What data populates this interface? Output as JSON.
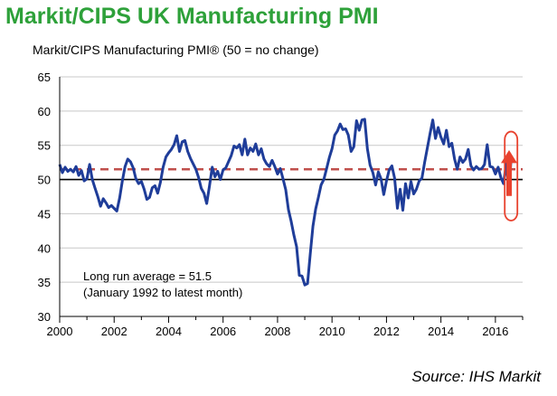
{
  "title": "Markit/CIPS UK Manufacturing PMI",
  "source": "Source: IHS Markit",
  "chart_data": {
    "type": "line",
    "subtitle": "Markit/CIPS Manufacturing PMI® (50 = no change)",
    "xlim": [
      2000,
      2017
    ],
    "ylim": [
      30,
      65
    ],
    "x_ticks": [
      2000,
      2002,
      2004,
      2006,
      2008,
      2010,
      2012,
      2014,
      2016
    ],
    "y_ticks": [
      30,
      35,
      40,
      45,
      50,
      55,
      60,
      65
    ],
    "grid": "horizontal",
    "reference_lines": [
      {
        "value": 50,
        "style": "solid",
        "color": "#000000"
      },
      {
        "value": 51.5,
        "style": "dashed",
        "color": "#c0504d"
      }
    ],
    "annotations": [
      {
        "text": "Long run average = 51.5"
      },
      {
        "text": "(January 1992 to latest month)"
      }
    ],
    "highlight": {
      "x_range": [
        2016.5,
        2016.65
      ],
      "note": "latest rebound marked with red oval and upward arrow"
    },
    "series": [
      {
        "color": "#1f3d99",
        "points": [
          [
            2000.0,
            52.2
          ],
          [
            2000.1,
            51.0
          ],
          [
            2000.2,
            51.8
          ],
          [
            2000.3,
            51.2
          ],
          [
            2000.4,
            51.5
          ],
          [
            2000.5,
            51.1
          ],
          [
            2000.6,
            51.9
          ],
          [
            2000.7,
            50.6
          ],
          [
            2000.8,
            51.3
          ],
          [
            2000.9,
            49.8
          ],
          [
            2001.0,
            50.1
          ],
          [
            2001.1,
            52.2
          ],
          [
            2001.2,
            50.0
          ],
          [
            2001.3,
            48.7
          ],
          [
            2001.4,
            47.5
          ],
          [
            2001.5,
            46.1
          ],
          [
            2001.6,
            47.2
          ],
          [
            2001.7,
            46.6
          ],
          [
            2001.8,
            45.9
          ],
          [
            2001.9,
            46.2
          ],
          [
            2002.0,
            45.8
          ],
          [
            2002.1,
            45.4
          ],
          [
            2002.2,
            47.3
          ],
          [
            2002.3,
            49.8
          ],
          [
            2002.4,
            51.9
          ],
          [
            2002.5,
            53.0
          ],
          [
            2002.6,
            52.6
          ],
          [
            2002.7,
            51.7
          ],
          [
            2002.8,
            50.1
          ],
          [
            2002.9,
            49.4
          ],
          [
            2003.0,
            49.7
          ],
          [
            2003.1,
            48.6
          ],
          [
            2003.2,
            47.1
          ],
          [
            2003.3,
            47.4
          ],
          [
            2003.4,
            48.8
          ],
          [
            2003.5,
            49.1
          ],
          [
            2003.6,
            48.0
          ],
          [
            2003.7,
            49.6
          ],
          [
            2003.8,
            51.8
          ],
          [
            2003.9,
            53.3
          ],
          [
            2004.0,
            53.9
          ],
          [
            2004.1,
            54.4
          ],
          [
            2004.2,
            55.1
          ],
          [
            2004.3,
            56.4
          ],
          [
            2004.4,
            54.1
          ],
          [
            2004.5,
            55.5
          ],
          [
            2004.6,
            55.7
          ],
          [
            2004.7,
            54.1
          ],
          [
            2004.8,
            53.1
          ],
          [
            2004.9,
            52.3
          ],
          [
            2005.0,
            51.5
          ],
          [
            2005.1,
            50.3
          ],
          [
            2005.2,
            48.7
          ],
          [
            2005.3,
            48.0
          ],
          [
            2005.4,
            46.5
          ],
          [
            2005.5,
            49.0
          ],
          [
            2005.6,
            51.8
          ],
          [
            2005.7,
            50.4
          ],
          [
            2005.8,
            51.2
          ],
          [
            2005.9,
            50.0
          ],
          [
            2006.0,
            51.4
          ],
          [
            2006.1,
            51.7
          ],
          [
            2006.2,
            52.6
          ],
          [
            2006.3,
            53.5
          ],
          [
            2006.4,
            54.9
          ],
          [
            2006.5,
            54.6
          ],
          [
            2006.6,
            55.1
          ],
          [
            2006.7,
            53.6
          ],
          [
            2006.8,
            55.9
          ],
          [
            2006.9,
            53.6
          ],
          [
            2007.0,
            54.6
          ],
          [
            2007.1,
            54.1
          ],
          [
            2007.2,
            55.2
          ],
          [
            2007.3,
            53.6
          ],
          [
            2007.4,
            54.5
          ],
          [
            2007.5,
            53.0
          ],
          [
            2007.6,
            52.3
          ],
          [
            2007.7,
            51.9
          ],
          [
            2007.8,
            52.8
          ],
          [
            2007.9,
            51.9
          ],
          [
            2008.0,
            50.8
          ],
          [
            2008.1,
            51.6
          ],
          [
            2008.2,
            50.1
          ],
          [
            2008.3,
            48.5
          ],
          [
            2008.4,
            45.6
          ],
          [
            2008.5,
            43.9
          ],
          [
            2008.6,
            41.9
          ],
          [
            2008.7,
            40.2
          ],
          [
            2008.8,
            36.0
          ],
          [
            2008.9,
            35.9
          ],
          [
            2009.0,
            34.6
          ],
          [
            2009.1,
            34.8
          ],
          [
            2009.2,
            39.1
          ],
          [
            2009.3,
            43.2
          ],
          [
            2009.4,
            45.7
          ],
          [
            2009.5,
            47.4
          ],
          [
            2009.6,
            49.2
          ],
          [
            2009.7,
            50.0
          ],
          [
            2009.8,
            51.6
          ],
          [
            2009.9,
            53.2
          ],
          [
            2010.0,
            54.5
          ],
          [
            2010.1,
            56.5
          ],
          [
            2010.2,
            57.1
          ],
          [
            2010.3,
            58.1
          ],
          [
            2010.4,
            57.3
          ],
          [
            2010.5,
            57.4
          ],
          [
            2010.6,
            56.5
          ],
          [
            2010.7,
            54.1
          ],
          [
            2010.8,
            54.8
          ],
          [
            2010.9,
            58.6
          ],
          [
            2011.0,
            57.2
          ],
          [
            2011.1,
            58.7
          ],
          [
            2011.2,
            58.8
          ],
          [
            2011.3,
            54.5
          ],
          [
            2011.4,
            52.1
          ],
          [
            2011.5,
            51.0
          ],
          [
            2011.6,
            49.2
          ],
          [
            2011.7,
            51.1
          ],
          [
            2011.8,
            50.1
          ],
          [
            2011.9,
            47.8
          ],
          [
            2012.0,
            49.8
          ],
          [
            2012.1,
            51.4
          ],
          [
            2012.2,
            52.0
          ],
          [
            2012.3,
            50.2
          ],
          [
            2012.4,
            45.8
          ],
          [
            2012.5,
            48.6
          ],
          [
            2012.6,
            45.5
          ],
          [
            2012.7,
            49.4
          ],
          [
            2012.8,
            47.3
          ],
          [
            2012.9,
            49.7
          ],
          [
            2013.0,
            47.9
          ],
          [
            2013.1,
            48.6
          ],
          [
            2013.2,
            49.8
          ],
          [
            2013.3,
            50.2
          ],
          [
            2013.4,
            52.5
          ],
          [
            2013.5,
            54.6
          ],
          [
            2013.6,
            56.7
          ],
          [
            2013.7,
            58.7
          ],
          [
            2013.8,
            56.0
          ],
          [
            2013.9,
            57.6
          ],
          [
            2014.0,
            56.2
          ],
          [
            2014.1,
            55.2
          ],
          [
            2014.2,
            57.2
          ],
          [
            2014.3,
            54.8
          ],
          [
            2014.4,
            55.3
          ],
          [
            2014.5,
            53.0
          ],
          [
            2014.6,
            51.5
          ],
          [
            2014.7,
            53.3
          ],
          [
            2014.8,
            52.5
          ],
          [
            2014.9,
            53.0
          ],
          [
            2015.0,
            54.4
          ],
          [
            2015.1,
            52.0
          ],
          [
            2015.2,
            51.4
          ],
          [
            2015.3,
            51.9
          ],
          [
            2015.4,
            51.5
          ],
          [
            2015.5,
            51.6
          ],
          [
            2015.6,
            52.2
          ],
          [
            2015.7,
            55.1
          ],
          [
            2015.8,
            51.9
          ],
          [
            2015.9,
            51.8
          ],
          [
            2016.0,
            50.8
          ],
          [
            2016.1,
            51.8
          ],
          [
            2016.2,
            50.3
          ],
          [
            2016.3,
            49.4
          ],
          [
            2016.4,
            52.4
          ],
          [
            2016.5,
            48.3
          ],
          [
            2016.58,
            53.4
          ]
        ]
      }
    ]
  }
}
